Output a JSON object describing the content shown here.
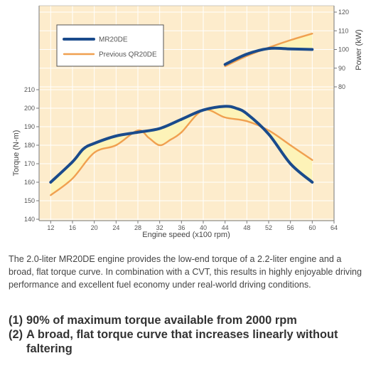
{
  "chart_data": {
    "type": "line",
    "xlabel": "Engine speed (x100 rpm)",
    "ylabel_left": "Torque (N-m)",
    "ylabel_right": "Power (kW)",
    "x_ticks": [
      12,
      16,
      20,
      24,
      28,
      32,
      36,
      40,
      44,
      48,
      52,
      56,
      60,
      64
    ],
    "x_range": [
      10,
      64
    ],
    "torque_ticks": [
      140,
      150,
      160,
      170,
      180,
      190,
      200,
      210
    ],
    "torque_range": [
      140,
      215
    ],
    "power_ticks": [
      80,
      90,
      100,
      110,
      120
    ],
    "power_range": [
      80,
      120
    ],
    "legend_placement": "top-left",
    "series": [
      {
        "name": "MR20DE",
        "quantity": "torque",
        "color": "#1a4b8c",
        "x": [
          12,
          16,
          18,
          20,
          24,
          28,
          32,
          36,
          40,
          44,
          46,
          48,
          52,
          56,
          60
        ],
        "y": [
          160,
          171,
          178,
          181,
          185,
          187,
          189,
          194,
          199,
          201,
          200,
          197,
          186,
          170,
          160
        ]
      },
      {
        "name": "Previous QR20DE",
        "quantity": "torque",
        "color": "#f0a050",
        "x": [
          12,
          16,
          20,
          24,
          28,
          30,
          32,
          34,
          36,
          40,
          44,
          48,
          52,
          56,
          60
        ],
        "y": [
          153,
          162,
          176,
          180,
          188,
          184,
          180,
          183,
          187,
          199,
          195,
          193,
          188,
          180,
          172
        ]
      },
      {
        "name": "MR20DE",
        "quantity": "power",
        "color": "#1a4b8c",
        "x": [
          44,
          48,
          52,
          56,
          60
        ],
        "y": [
          92,
          97.5,
          100.5,
          100.3,
          100
        ]
      },
      {
        "name": "Previous QR20DE",
        "quantity": "power",
        "color": "#f0a050",
        "x": [
          44,
          48,
          52,
          56,
          60
        ],
        "y": [
          91,
          96.5,
          101,
          105,
          108.5
        ]
      }
    ],
    "colors": {
      "panel": "#fdeccc",
      "fill": "#fdf3b8",
      "plot_bg": "#ffffff"
    }
  },
  "description": "The 2.0-liter MR20DE engine provides the low-end torque of a 2.2-liter engine and a broad, flat torque curve. In combination with a CVT, this results in highly enjoyable driving performance and excellent fuel economy under real-world driving conditions.",
  "features": [
    {
      "num": "(1)",
      "text": "90% of maximum torque available from 2000 rpm"
    },
    {
      "num": "(2)",
      "text": "A broad, flat torque curve that increases linearly without faltering"
    }
  ]
}
